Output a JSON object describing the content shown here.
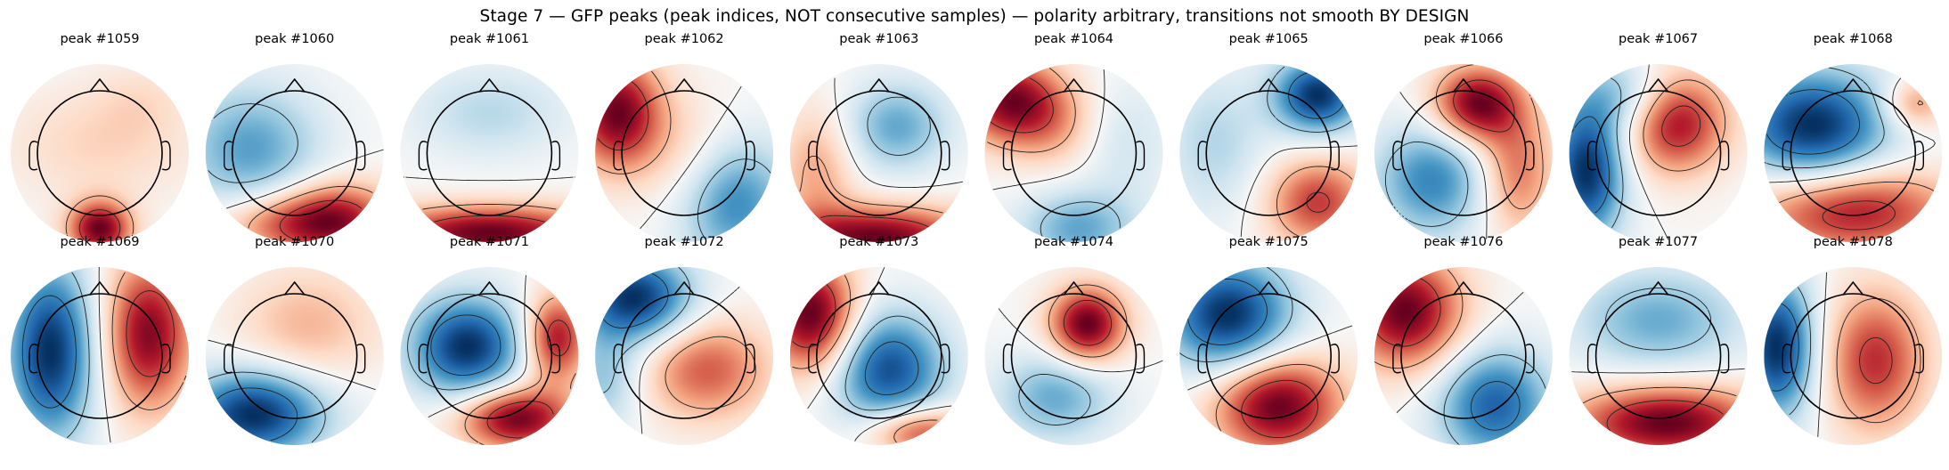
{
  "title": "Stage 7 — GFP peaks (peak indices, NOT consecutive samples) — polarity arbitrary, transitions not smooth BY DESIGN",
  "chart_data": {
    "type": "heatmap",
    "colormap": "RdBu_r",
    "rows": 2,
    "cols": 10,
    "panels": [
      {
        "label": "peak #1059",
        "blobs": [
          [
            0.0,
            -0.85,
            2.0,
            0.25,
            0.22
          ],
          [
            0.0,
            0.1,
            0.45,
            0.75,
            0.45
          ],
          [
            0.45,
            0.6,
            0.25,
            0.35,
            0.3
          ]
        ]
      },
      {
        "label": "peak #1060",
        "blobs": [
          [
            -0.5,
            0.05,
            -0.75,
            0.55,
            0.5
          ],
          [
            0.5,
            -0.75,
            1.05,
            0.45,
            0.3
          ],
          [
            -0.15,
            -0.8,
            0.7,
            0.5,
            0.25
          ]
        ]
      },
      {
        "label": "peak #1061",
        "blobs": [
          [
            0.0,
            -0.9,
            0.9,
            0.9,
            0.22
          ],
          [
            0.0,
            0.45,
            -0.25,
            0.6,
            0.35
          ]
        ]
      },
      {
        "label": "peak #1062",
        "blobs": [
          [
            -0.75,
            0.45,
            1.25,
            0.35,
            0.45
          ],
          [
            0.55,
            -0.55,
            -0.85,
            0.45,
            0.5
          ],
          [
            0.05,
            -0.05,
            0.3,
            0.4,
            0.5
          ]
        ]
      },
      {
        "label": "peak #1063",
        "blobs": [
          [
            0.2,
            0.3,
            -0.55,
            0.4,
            0.35
          ],
          [
            0.0,
            -0.95,
            1.05,
            0.75,
            0.25
          ],
          [
            -0.7,
            -0.2,
            0.4,
            0.3,
            0.5
          ]
        ]
      },
      {
        "label": "peak #1064",
        "blobs": [
          [
            -0.75,
            0.6,
            1.45,
            0.4,
            0.35
          ],
          [
            -0.25,
            0.35,
            0.55,
            0.35,
            0.35
          ],
          [
            0.05,
            -0.85,
            -0.85,
            0.45,
            0.3
          ],
          [
            0.6,
            0.1,
            -0.3,
            0.35,
            0.5
          ]
        ]
      },
      {
        "label": "peak #1065",
        "blobs": [
          [
            0.55,
            0.65,
            -0.85,
            0.35,
            0.3
          ],
          [
            0.55,
            -0.55,
            0.6,
            0.4,
            0.35
          ],
          [
            -0.6,
            0.1,
            -0.25,
            0.4,
            0.55
          ]
        ]
      },
      {
        "label": "peak #1066",
        "blobs": [
          [
            0.15,
            0.55,
            0.45,
            0.35,
            0.3
          ],
          [
            -0.35,
            -0.3,
            -0.3,
            0.45,
            0.45
          ],
          [
            0.6,
            -0.2,
            0.25,
            0.3,
            0.5
          ]
        ]
      },
      {
        "label": "peak #1067",
        "blobs": [
          [
            0.2,
            0.35,
            0.65,
            0.4,
            0.4
          ],
          [
            -0.8,
            -0.2,
            -0.75,
            0.3,
            0.55
          ],
          [
            -0.35,
            0.65,
            -0.3,
            0.4,
            0.3
          ]
        ]
      },
      {
        "label": "peak #1068",
        "blobs": [
          [
            -0.45,
            0.3,
            -0.55,
            0.6,
            0.45
          ],
          [
            0.0,
            -0.65,
            0.45,
            0.8,
            0.35
          ],
          [
            0.7,
            0.55,
            0.25,
            0.25,
            0.2
          ]
        ]
      },
      {
        "label": "peak #1069",
        "blobs": [
          [
            -0.55,
            0.05,
            -0.65,
            0.35,
            0.7
          ],
          [
            0.55,
            0.25,
            0.6,
            0.35,
            0.6
          ]
        ]
      },
      {
        "label": "peak #1070",
        "blobs": [
          [
            -0.45,
            -0.65,
            -1.05,
            0.55,
            0.35
          ],
          [
            0.15,
            0.35,
            0.35,
            0.55,
            0.45
          ]
        ]
      },
      {
        "label": "peak #1071",
        "blobs": [
          [
            -0.25,
            0.1,
            -0.35,
            0.45,
            0.4
          ],
          [
            0.3,
            -0.7,
            0.35,
            0.45,
            0.25
          ],
          [
            0.75,
            0.2,
            0.3,
            0.25,
            0.35
          ]
        ]
      },
      {
        "label": "peak #1072",
        "blobs": [
          [
            -0.55,
            0.65,
            -0.9,
            0.45,
            0.35
          ],
          [
            0.25,
            -0.15,
            0.55,
            0.5,
            0.4
          ],
          [
            -0.9,
            -0.25,
            -0.35,
            0.3,
            0.4
          ]
        ]
      },
      {
        "label": "peak #1073",
        "blobs": [
          [
            0.1,
            -0.15,
            -0.55,
            0.45,
            0.45
          ],
          [
            -0.75,
            0.45,
            0.65,
            0.35,
            0.45
          ],
          [
            0.45,
            -0.85,
            0.45,
            0.4,
            0.2
          ]
        ]
      },
      {
        "label": "peak #1074",
        "blobs": [
          [
            0.15,
            0.35,
            0.3,
            0.3,
            0.3
          ],
          [
            -0.2,
            -0.45,
            -0.15,
            0.45,
            0.35
          ]
        ]
      },
      {
        "label": "peak #1075",
        "blobs": [
          [
            0.1,
            -0.55,
            0.55,
            0.5,
            0.4
          ],
          [
            -0.45,
            0.45,
            -0.55,
            0.5,
            0.45
          ]
        ]
      },
      {
        "label": "peak #1076",
        "blobs": [
          [
            -0.65,
            0.5,
            1.05,
            0.45,
            0.45
          ],
          [
            0.35,
            -0.55,
            -0.85,
            0.45,
            0.45
          ]
        ]
      },
      {
        "label": "peak #1077",
        "blobs": [
          [
            0.1,
            -0.75,
            0.9,
            0.75,
            0.3
          ],
          [
            0.0,
            0.4,
            -0.45,
            0.65,
            0.4
          ]
        ]
      },
      {
        "label": "peak #1078",
        "blobs": [
          [
            0.25,
            -0.05,
            0.55,
            0.4,
            0.55
          ],
          [
            -0.85,
            0.1,
            -0.75,
            0.3,
            0.55
          ]
        ]
      }
    ]
  }
}
